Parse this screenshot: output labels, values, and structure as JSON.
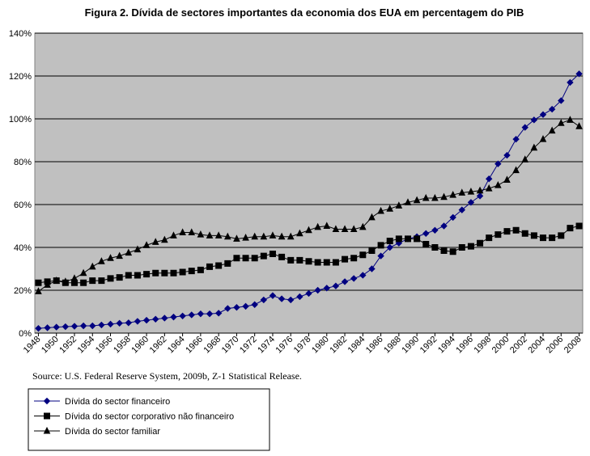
{
  "chart_data": {
    "type": "line",
    "title": "Figura 2. Dívida de sectores importantes da economia dos EUA em percentagem do PIB",
    "source": "Source: U.S. Federal Reserve System, 2009b, Z-1 Statistical Release.",
    "x": [
      1948,
      1949,
      1950,
      1951,
      1952,
      1953,
      1954,
      1955,
      1956,
      1957,
      1958,
      1959,
      1960,
      1961,
      1962,
      1963,
      1964,
      1965,
      1966,
      1967,
      1968,
      1969,
      1970,
      1971,
      1972,
      1973,
      1974,
      1975,
      1976,
      1977,
      1978,
      1979,
      1980,
      1981,
      1982,
      1983,
      1984,
      1985,
      1986,
      1987,
      1988,
      1989,
      1990,
      1991,
      1992,
      1993,
      1994,
      1995,
      1996,
      1997,
      1998,
      1999,
      2000,
      2001,
      2002,
      2003,
      2004,
      2005,
      2006,
      2007,
      2008
    ],
    "xlim": [
      1947.6,
      2008.4
    ],
    "xticks": [
      1948,
      1950,
      1952,
      1954,
      1956,
      1958,
      1960,
      1962,
      1964,
      1966,
      1968,
      1970,
      1972,
      1974,
      1976,
      1978,
      1980,
      1982,
      1984,
      1986,
      1988,
      1990,
      1992,
      1994,
      1996,
      1998,
      2000,
      2002,
      2004,
      2006,
      2008
    ],
    "ylim": [
      0,
      140
    ],
    "yticks": [
      {
        "value": 0,
        "label": "0%"
      },
      {
        "value": 20,
        "label": "20%"
      },
      {
        "value": 40,
        "label": "40%"
      },
      {
        "value": 60,
        "label": "60%"
      },
      {
        "value": 80,
        "label": "80%"
      },
      {
        "value": 100,
        "label": "100%"
      },
      {
        "value": 120,
        "label": "120%"
      },
      {
        "value": 140,
        "label": "140%"
      }
    ],
    "grid": true,
    "series": [
      {
        "name": "Dívida do sector financeiro",
        "color": "#000080",
        "marker": "diamond",
        "values": [
          2.2,
          2.5,
          2.8,
          3,
          3.2,
          3.4,
          3.4,
          3.8,
          4.2,
          4.6,
          4.8,
          5.5,
          6,
          6.5,
          7,
          7.5,
          8,
          8.5,
          9,
          9,
          9.3,
          11.5,
          12,
          12.5,
          13.3,
          15.5,
          17.5,
          16,
          15.5,
          17,
          18.5,
          20,
          21,
          22,
          24,
          25.5,
          27,
          30,
          36,
          40,
          42,
          44,
          45,
          46.5,
          48,
          50,
          54,
          57.5,
          61,
          64,
          72,
          79,
          83,
          90.5,
          96,
          99.5,
          102,
          104.5,
          108.5,
          117,
          121
        ]
      },
      {
        "name": "Dívida do sector corporativo não financeiro",
        "color": "#000000",
        "marker": "square",
        "values": [
          23.5,
          24,
          24.5,
          23.5,
          23.5,
          23.5,
          24.5,
          24.5,
          25.5,
          26,
          27,
          27,
          27.5,
          28,
          28,
          28,
          28.5,
          29,
          29.5,
          31,
          31.5,
          32.5,
          35,
          35,
          35,
          36,
          37,
          35.5,
          34,
          34,
          33.5,
          33,
          33,
          33,
          34.5,
          35,
          36.5,
          38.5,
          41,
          43,
          44,
          44,
          44,
          41.5,
          40,
          38.5,
          38,
          40,
          40.5,
          42,
          44.5,
          46,
          47.5,
          48,
          46.5,
          45.5,
          44.5,
          44.5,
          45.5,
          49,
          50
        ]
      },
      {
        "name": "Dívida do sector familiar",
        "color": "#000000",
        "marker": "triangle",
        "values": [
          19.5,
          22.5,
          24.5,
          24,
          25.5,
          28,
          31,
          33.5,
          35,
          36,
          37.5,
          39,
          41,
          42.5,
          43.5,
          45.5,
          47,
          47,
          46,
          45.5,
          45.5,
          45,
          44,
          44.5,
          45,
          45,
          45.5,
          45,
          45,
          46.5,
          48,
          49.5,
          50,
          48.5,
          48.5,
          48.5,
          49.5,
          54,
          57,
          58,
          59.5,
          61,
          62,
          63,
          63,
          63.5,
          64.5,
          65.5,
          66,
          66.5,
          67.5,
          69,
          71.5,
          76,
          81,
          86.5,
          90.5,
          94.5,
          98,
          99.5,
          96.5
        ]
      }
    ]
  }
}
